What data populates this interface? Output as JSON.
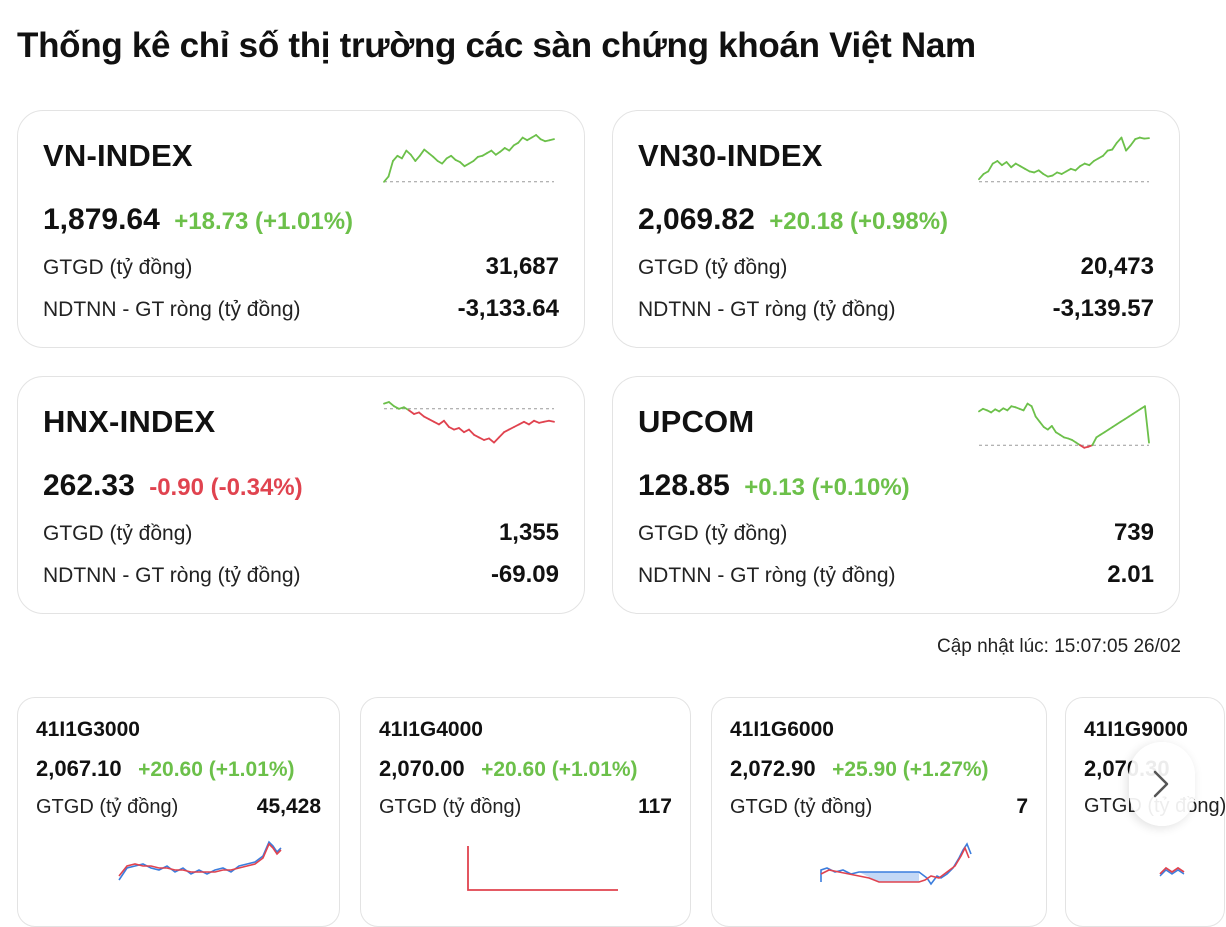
{
  "page": {
    "title": "Thống kê chỉ số thị trường các sàn chứng khoán Việt Nam",
    "update_text": "Cập nhật lúc: 15:07:05 26/02"
  },
  "colors": {
    "up": "#6cc04a",
    "down": "#e0434f",
    "baseline": "#9a9a9a",
    "blue_line": "#3b7ddd"
  },
  "indices": [
    {
      "name": "VN-INDEX",
      "price": "1,879.64",
      "change": "+18.73 (+1.01%)",
      "direction": "up",
      "gtgd_label": "GTGD (tỷ đồng)",
      "gtgd_value": "31,687",
      "ndtnn_label": "NDTNN - GT ròng (tỷ đồng)",
      "ndtnn_value": "-3,133.64",
      "spark_series": [
        0.1,
        0.2,
        0.5,
        0.6,
        0.55,
        0.7,
        0.62,
        0.5,
        0.6,
        0.72,
        0.65,
        0.58,
        0.5,
        0.45,
        0.55,
        0.6,
        0.52,
        0.48,
        0.4,
        0.45,
        0.5,
        0.58,
        0.6,
        0.65,
        0.7,
        0.62,
        0.68,
        0.75,
        0.7,
        0.8,
        0.85,
        0.95,
        0.9,
        0.95,
        1.0,
        0.92,
        0.88,
        0.9,
        0.92
      ],
      "spark_base": 0.1
    },
    {
      "name": "VN30-INDEX",
      "price": "2,069.82",
      "change": "+20.18 (+0.98%)",
      "direction": "up",
      "gtgd_label": "GTGD (tỷ đồng)",
      "gtgd_value": "20,473",
      "ndtnn_label": "NDTNN - GT ròng (tỷ đồng)",
      "ndtnn_value": "-3,139.57",
      "spark_series": [
        0.15,
        0.25,
        0.3,
        0.45,
        0.5,
        0.42,
        0.48,
        0.38,
        0.45,
        0.4,
        0.35,
        0.3,
        0.28,
        0.32,
        0.25,
        0.2,
        0.22,
        0.28,
        0.25,
        0.3,
        0.35,
        0.32,
        0.4,
        0.45,
        0.42,
        0.5,
        0.55,
        0.6,
        0.7,
        0.72,
        0.85,
        0.95,
        0.7,
        0.8,
        0.92,
        0.95,
        0.93,
        0.94
      ],
      "spark_base": 0.1
    },
    {
      "name": "HNX-INDEX",
      "price": "262.33",
      "change": "-0.90 (-0.34%)",
      "direction": "down",
      "gtgd_label": "GTGD (tỷ đồng)",
      "gtgd_value": "1,355",
      "ndtnn_label": "NDTNN - GT ròng (tỷ đồng)",
      "ndtnn_value": "-69.09",
      "spark_series": [
        0.95,
        0.98,
        0.9,
        0.85,
        0.88,
        0.82,
        0.75,
        0.78,
        0.7,
        0.65,
        0.6,
        0.55,
        0.62,
        0.5,
        0.45,
        0.48,
        0.4,
        0.45,
        0.35,
        0.3,
        0.25,
        0.28,
        0.2,
        0.3,
        0.4,
        0.45,
        0.5,
        0.55,
        0.6,
        0.55,
        0.62,
        0.58,
        0.6,
        0.62,
        0.6
      ],
      "spark_base": 0.85
    },
    {
      "name": "UPCOM",
      "price": "128.85",
      "change": "+0.13 (+0.10%)",
      "direction": "up",
      "gtgd_label": "GTGD (tỷ đồng)",
      "gtgd_value": "739",
      "ndtnn_label": "NDTNN - GT ròng (tỷ đồng)",
      "ndtnn_value": "2.01",
      "spark_series": [
        0.8,
        0.85,
        0.82,
        0.78,
        0.84,
        0.8,
        0.86,
        0.82,
        0.9,
        0.88,
        0.85,
        0.82,
        0.95,
        0.9,
        0.7,
        0.6,
        0.5,
        0.45,
        0.52,
        0.4,
        0.35,
        0.3,
        0.28,
        0.25,
        0.2,
        0.15,
        0.1,
        0.12,
        0.15,
        0.3,
        0.35,
        0.4,
        0.45,
        0.5,
        0.55,
        0.6,
        0.65,
        0.7,
        0.75,
        0.8,
        0.85,
        0.9,
        0.2
      ],
      "spark_base": 0.15
    }
  ],
  "futures": [
    {
      "code": "41I1G3000",
      "price": "2,067.10",
      "change": "+20.60 (+1.01%)",
      "direction": "up",
      "gtgd_label": "GTGD (tỷ đồng)",
      "gtgd_value": "45,428"
    },
    {
      "code": "41I1G4000",
      "price": "2,070.00",
      "change": "+20.60 (+1.01%)",
      "direction": "up",
      "gtgd_label": "GTGD (tỷ đồng)",
      "gtgd_value": "117"
    },
    {
      "code": "41I1G6000",
      "price": "2,072.90",
      "change": "+25.90 (+1.27%)",
      "direction": "up",
      "gtgd_label": "GTGD (tỷ đồng)",
      "gtgd_value": "7"
    },
    {
      "code": "41I1G9000",
      "price": "2,070.30",
      "change": "",
      "direction": "up",
      "gtgd_label": "GTGD (tỷ đồng)",
      "gtgd_value": ""
    }
  ],
  "carousel": {
    "next_icon": "chevron-right-icon"
  }
}
